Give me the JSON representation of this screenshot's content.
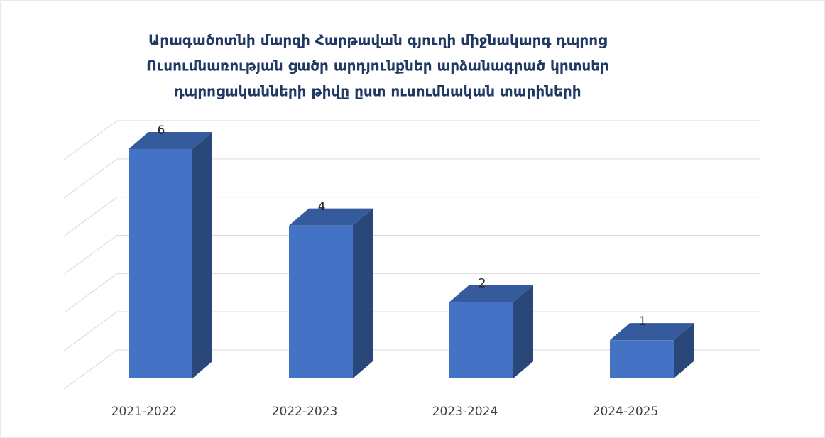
{
  "chart_data": {
    "type": "bar3d",
    "title": [
      "Արագածոտնի մարզի Հարթավան գյուղի միջնակարգ դպրոց",
      "Ուսումնառության ցածր արդյունքներ արձանագրած կրտսեր",
      "դպրոցականների թիվը ըստ ուսումնական տարիների"
    ],
    "categories": [
      "2021-2022",
      "2022-2023",
      "2023-2024",
      "2024-2025"
    ],
    "values": [
      6,
      4,
      2,
      1
    ],
    "color": "#4472c4",
    "ylim": [
      0,
      6
    ],
    "yticks": [
      0,
      1,
      2,
      3,
      4,
      5,
      6
    ],
    "grid": true
  }
}
